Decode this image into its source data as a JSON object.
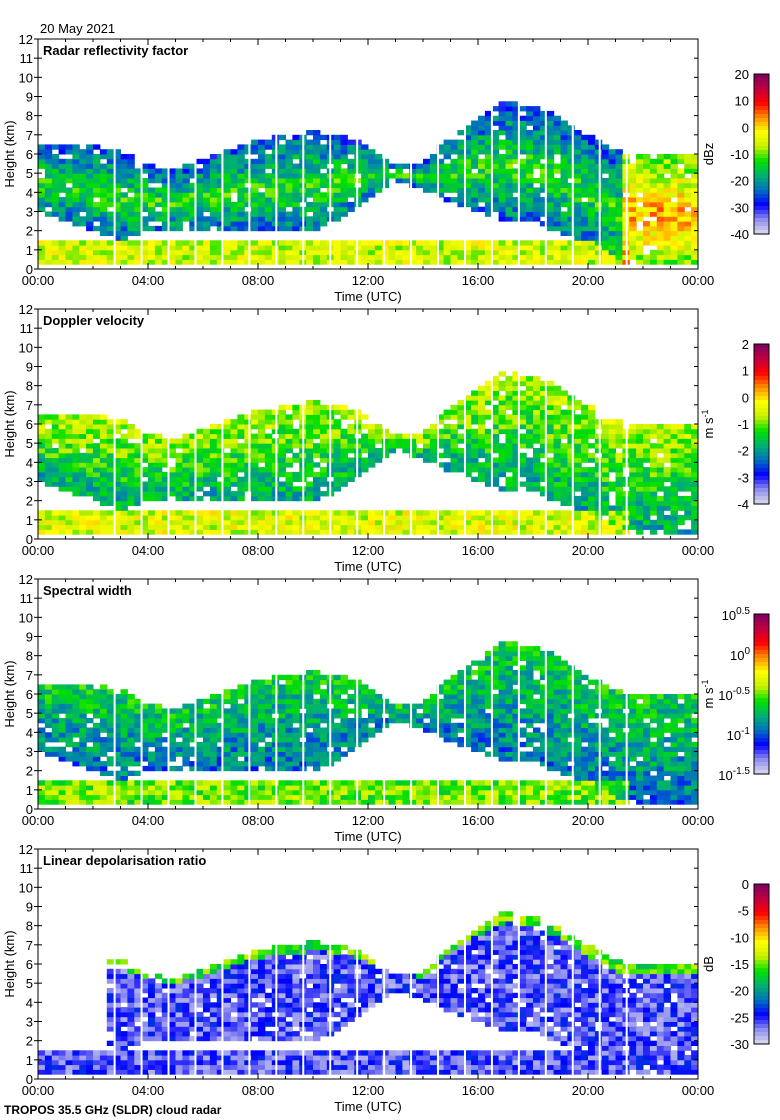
{
  "date_label": "20 May 2021",
  "footer": "TROPOS 35.5 GHz (SLDR) cloud radar",
  "chart_data": [
    {
      "type": "heatmap",
      "title": "Radar reflectivity factor",
      "xlabel": "Time (UTC)",
      "ylabel": "Height (km)",
      "xlim": [
        0,
        24
      ],
      "ylim": [
        0,
        12
      ],
      "xticks": [
        "00:00",
        "04:00",
        "08:00",
        "12:00",
        "16:00",
        "20:00",
        "00:00"
      ],
      "yticks": [
        "0",
        "1",
        "2",
        "3",
        "4",
        "5",
        "6",
        "7",
        "8",
        "9",
        "10",
        "11",
        "12"
      ],
      "colorbar": {
        "label": "dBz",
        "range": [
          -40,
          20
        ],
        "ticks": [
          "20",
          "10",
          "0",
          "-10",
          "-20",
          "-30",
          "-40"
        ]
      },
      "typical_value": -15
    },
    {
      "type": "heatmap",
      "title": "Doppler velocity",
      "xlabel": "Time (UTC)",
      "ylabel": "Height (km)",
      "xlim": [
        0,
        24
      ],
      "ylim": [
        0,
        12
      ],
      "xticks": [
        "00:00",
        "04:00",
        "08:00",
        "12:00",
        "16:00",
        "20:00",
        "00:00"
      ],
      "yticks": [
        "0",
        "1",
        "2",
        "3",
        "4",
        "5",
        "6",
        "7",
        "8",
        "9",
        "10",
        "11",
        "12"
      ],
      "colorbar": {
        "label": "m s",
        "label_sup": "-1",
        "range": [
          -4,
          2
        ],
        "ticks": [
          "2",
          "1",
          "0",
          "-1",
          "-2",
          "-3",
          "-4"
        ]
      },
      "typical_value": -1.3
    },
    {
      "type": "heatmap",
      "title": "Spectral width",
      "xlabel": "Time (UTC)",
      "ylabel": "Height (km)",
      "xlim": [
        0,
        24
      ],
      "ylim": [
        0,
        12
      ],
      "xticks": [
        "00:00",
        "04:00",
        "08:00",
        "12:00",
        "16:00",
        "20:00",
        "00:00"
      ],
      "yticks": [
        "0",
        "1",
        "2",
        "3",
        "4",
        "5",
        "6",
        "7",
        "8",
        "9",
        "10",
        "11",
        "12"
      ],
      "colorbar": {
        "label": "m s",
        "label_sup": "-1",
        "scale": "log",
        "range": [
          -1.5,
          0.5
        ],
        "ticks": [
          {
            "base": "10",
            "exp": "0.5"
          },
          {
            "base": "10",
            "exp": "0"
          },
          {
            "base": "10",
            "exp": "-0.5"
          },
          {
            "base": "10",
            "exp": "-1"
          },
          {
            "base": "10",
            "exp": "-1.5"
          }
        ]
      },
      "typical_value": -0.8
    },
    {
      "type": "heatmap",
      "title": "Linear depolarisation ratio",
      "xlabel": "Time (UTC)",
      "ylabel": "Height (km)",
      "xlim": [
        0,
        24
      ],
      "ylim": [
        0,
        12
      ],
      "xticks": [
        "00:00",
        "04:00",
        "08:00",
        "12:00",
        "16:00",
        "20:00",
        "00:00"
      ],
      "yticks": [
        "0",
        "1",
        "2",
        "3",
        "4",
        "5",
        "6",
        "7",
        "8",
        "9",
        "10",
        "11",
        "12"
      ],
      "colorbar": {
        "label": "dB",
        "range": [
          -30,
          0
        ],
        "ticks": [
          "0",
          "-5",
          "-10",
          "-15",
          "-20",
          "-25",
          "-30"
        ]
      },
      "typical_value": -26
    }
  ],
  "cloud_envelope": {
    "hours": [
      0,
      1,
      2,
      3,
      4,
      5,
      6,
      7,
      8,
      9,
      10,
      11,
      12,
      13,
      14,
      15,
      16,
      17,
      18,
      19,
      20,
      21,
      22,
      23,
      24
    ],
    "top_km": [
      6.5,
      6.5,
      6.5,
      6.3,
      5.5,
      5.3,
      5.8,
      6.3,
      6.8,
      7.0,
      7.2,
      7.0,
      6.5,
      5.5,
      5.5,
      7.0,
      8.0,
      8.8,
      8.5,
      8.0,
      7.0,
      6.2,
      6.0,
      6.0,
      6.0
    ],
    "base_km": [
      3.0,
      2.5,
      2.0,
      1.5,
      2.0,
      2.0,
      2.0,
      2.0,
      2.0,
      2.0,
      2.0,
      2.5,
      3.5,
      4.5,
      4.2,
      3.5,
      3.0,
      2.5,
      2.5,
      1.8,
      1.5,
      0.5,
      0.3,
      0.3,
      0.3
    ],
    "low_layer_km": [
      0.2,
      1.6
    ],
    "low_layer_end_hour": 21.5
  },
  "colors": {
    "scale": [
      "#dcdcec",
      "#8c8cf0",
      "#0000ff",
      "#0070c0",
      "#00b070",
      "#00e000",
      "#c8f000",
      "#ffff00",
      "#ff9000",
      "#ff0000",
      "#c00040",
      "#7a0060"
    ]
  }
}
